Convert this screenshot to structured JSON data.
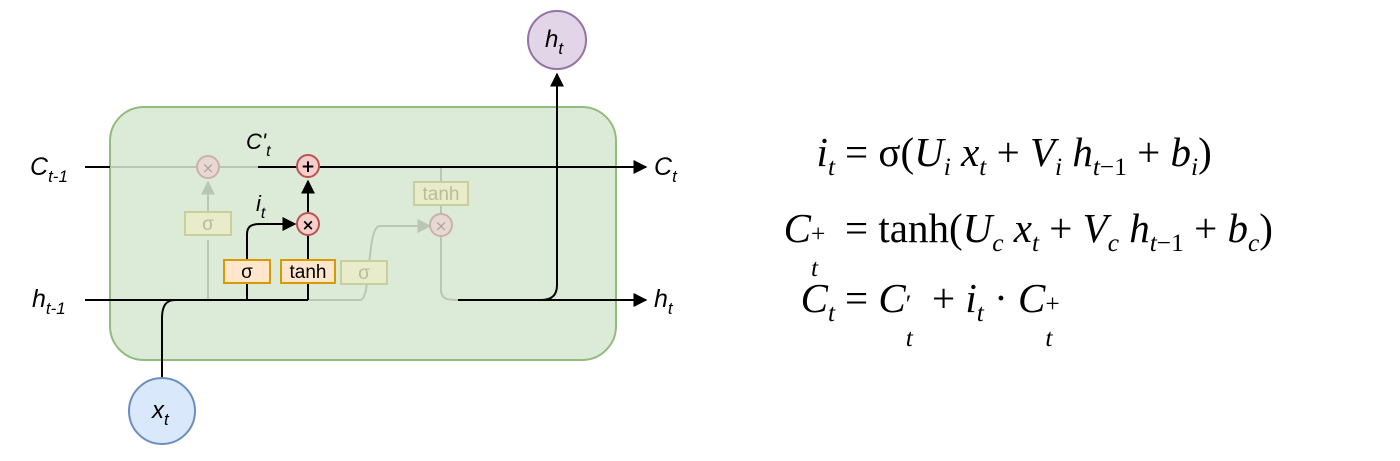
{
  "diagram": {
    "labels": {
      "c_prev_main": "C",
      "c_prev_sub": "t-1",
      "h_prev_main": "h",
      "h_prev_sub": "t-1",
      "c_out_main": "C",
      "c_out_sub": "t",
      "h_out_main": "h",
      "h_out_sub": "t",
      "h_top_main": "h",
      "h_top_sub": "t",
      "x_in_main": "x",
      "x_in_sub": "t",
      "c_prime_main": "C'",
      "c_prime_sub": "t",
      "i_main": "i",
      "i_sub": "t"
    },
    "gates": {
      "forget_sigma": "σ",
      "input_sigma": "σ",
      "input_tanh": "tanh",
      "output_sigma": "σ",
      "output_tanh": "tanh"
    },
    "ops": {
      "mult": "×",
      "add": "+"
    }
  },
  "equations": [
    {
      "lhs": {
        "base": "i",
        "sub": "t",
        "sup": ""
      },
      "rhs": "= σ(U_i x_t + V_i h_{t−1} + b_i)"
    },
    {
      "lhs": {
        "base": "C",
        "sub": "t",
        "sup": "+"
      },
      "rhs": "= tanh(U_c x_t + V_c h_{t−1} + b_c)"
    },
    {
      "lhs": {
        "base": "C",
        "sub": "t",
        "sup": ""
      },
      "rhs": "= C′_t + i_t · C^+_t"
    }
  ],
  "colors": {
    "cell_fill": "#dcebd8",
    "cell_stroke": "#93bb7e",
    "gate_fill": "#ffe6cc",
    "gate_stroke": "#d79b00",
    "op_fill": "#f8cecc",
    "op_stroke": "#b85450",
    "x_node_fill": "#dae8fc",
    "x_node_stroke": "#6c8ebf",
    "h_node_fill": "#e1d5e7",
    "h_node_stroke": "#9673a6",
    "faded": "#b9c6b3",
    "faded_gate_fill": "#e9eccb",
    "faded_gate_stroke": "#c9cf9c"
  }
}
